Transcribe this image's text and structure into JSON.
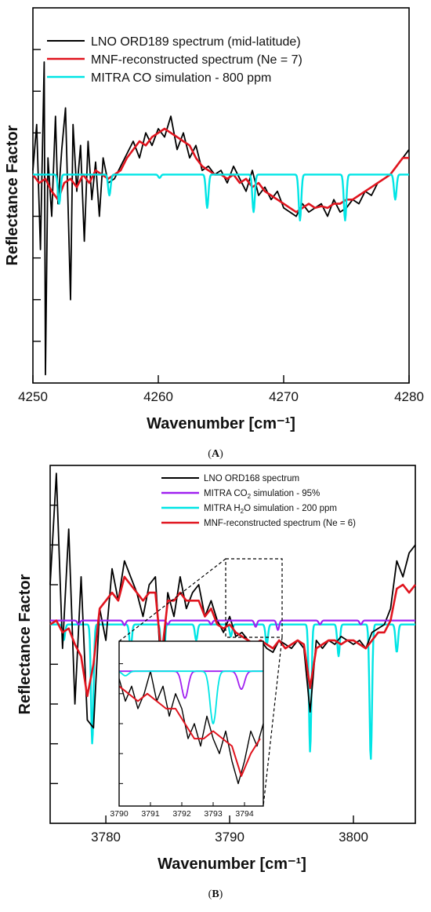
{
  "chart_data": [
    {
      "type": "line",
      "panel_label": "(A)",
      "panel_label_parts": [
        "(",
        "A",
        ")"
      ],
      "xlabel": "Wavenumber [cm⁻¹]",
      "ylabel": "Reflectance Factor",
      "xlim": [
        4250,
        4280
      ],
      "x_ticks": [
        4250,
        4260,
        4270,
        4280
      ],
      "ylim": [
        -2.5,
        2.0
      ],
      "y_ticks_unlabeled": [
        -2.0,
        -1.5,
        -1.0,
        -0.5,
        0.0,
        0.5,
        1.0,
        1.5
      ],
      "grid": false,
      "legend_position": "top",
      "series": [
        {
          "name": "LNO ORD189 spectrum (mid-latitude)",
          "color": "#000000",
          "x": [
            4250.0,
            4250.3,
            4250.6,
            4250.9,
            4251.0,
            4251.2,
            4251.5,
            4251.8,
            4252.0,
            4252.3,
            4252.6,
            4253.0,
            4253.2,
            4253.5,
            4253.8,
            4254.1,
            4254.4,
            4254.7,
            4255.0,
            4255.3,
            4255.6,
            4256.0,
            4256.5,
            4257,
            4257.5,
            4258,
            4258.5,
            4259,
            4259.5,
            4260,
            4260.5,
            4261,
            4261.5,
            4262,
            4262.5,
            4263,
            4263.5,
            4264,
            4264.5,
            4265,
            4265.5,
            4266,
            4266.5,
            4267,
            4267.5,
            4268,
            4268.5,
            4269,
            4269.5,
            4270,
            4270.5,
            4271,
            4271.5,
            4272,
            4272.5,
            4273,
            4273.5,
            4274,
            4274.5,
            4275,
            4275.5,
            4276,
            4276.5,
            4277,
            4277.5,
            4278,
            4278.5,
            4279,
            4279.5,
            4280
          ],
          "y": [
            0.05,
            0.6,
            -0.9,
            1.35,
            -2.4,
            0.2,
            -0.5,
            0.7,
            -0.35,
            0.3,
            0.8,
            -1.5,
            0.6,
            -0.2,
            0.35,
            -0.8,
            0.4,
            -0.3,
            0.15,
            -0.5,
            0.2,
            -0.1,
            -0.05,
            0.1,
            0.25,
            0.4,
            0.2,
            0.5,
            0.35,
            0.55,
            0.45,
            0.7,
            0.3,
            0.5,
            0.2,
            0.35,
            0.05,
            0.1,
            0.0,
            0.05,
            -0.1,
            0.1,
            -0.05,
            -0.2,
            0.05,
            -0.25,
            -0.15,
            -0.3,
            -0.2,
            -0.4,
            -0.45,
            -0.5,
            -0.35,
            -0.45,
            -0.4,
            -0.35,
            -0.5,
            -0.3,
            -0.45,
            -0.4,
            -0.3,
            -0.35,
            -0.2,
            -0.25,
            -0.1,
            -0.05,
            0.0,
            0.1,
            0.2,
            0.3
          ]
        },
        {
          "name": "MNF-reconstructed spectrum (Ne = 7)",
          "color": "#e0141e",
          "x": [
            4250.0,
            4250.5,
            4251.0,
            4251.5,
            4252.0,
            4252.5,
            4253.0,
            4253.5,
            4254.0,
            4254.5,
            4255.0,
            4255.5,
            4256.0,
            4256.5,
            4257,
            4257.5,
            4258,
            4258.5,
            4259,
            4259.5,
            4260,
            4260.5,
            4261,
            4261.5,
            4262,
            4262.5,
            4263,
            4263.5,
            4264,
            4264.5,
            4265,
            4265.5,
            4266,
            4266.5,
            4267,
            4267.5,
            4268,
            4268.5,
            4269,
            4269.5,
            4270,
            4270.5,
            4271,
            4271.5,
            4272,
            4272.5,
            4273,
            4273.5,
            4274,
            4274.5,
            4275,
            4275.5,
            4276,
            4276.5,
            4277,
            4277.5,
            4278,
            4278.5,
            4279,
            4279.5,
            4280
          ],
          "y": [
            0.0,
            -0.1,
            -0.05,
            -0.2,
            -0.3,
            -0.1,
            -0.05,
            -0.15,
            0.0,
            -0.1,
            0.05,
            0.0,
            -0.05,
            0.0,
            0.05,
            0.2,
            0.3,
            0.4,
            0.35,
            0.45,
            0.5,
            0.55,
            0.5,
            0.45,
            0.4,
            0.35,
            0.2,
            0.1,
            0.05,
            0.0,
            0.0,
            -0.05,
            0.0,
            -0.1,
            -0.05,
            -0.15,
            -0.1,
            -0.2,
            -0.25,
            -0.3,
            -0.35,
            -0.4,
            -0.45,
            -0.4,
            -0.35,
            -0.4,
            -0.38,
            -0.4,
            -0.35,
            -0.35,
            -0.3,
            -0.3,
            -0.25,
            -0.2,
            -0.15,
            -0.1,
            -0.05,
            0.0,
            0.1,
            0.2,
            0.2
          ]
        },
        {
          "name": "MITRA CO simulation - 800 ppm",
          "color": "#00e5e5",
          "baseline": 0.0,
          "lines": [
            {
              "center": 4252.1,
              "depth": 0.35
            },
            {
              "center": 4256.1,
              "depth": 0.25
            },
            {
              "center": 4260.1,
              "depth": 0.04
            },
            {
              "center": 4263.9,
              "depth": 0.4
            },
            {
              "center": 4267.6,
              "depth": 0.45
            },
            {
              "center": 4271.3,
              "depth": 0.55
            },
            {
              "center": 4274.9,
              "depth": 0.55
            },
            {
              "center": 4278.9,
              "depth": 0.3
            }
          ]
        }
      ]
    },
    {
      "type": "line",
      "panel_label": "(B)",
      "panel_label_parts": [
        "(",
        "B",
        ")"
      ],
      "xlabel": "Wavenumber [cm⁻¹]",
      "ylabel": "Reflectance Factor",
      "xlim": [
        3775.5,
        3805
      ],
      "x_ticks": [
        3780,
        3790,
        3800
      ],
      "ylim": [
        -2.5,
        2.0
      ],
      "y_ticks_unlabeled": [
        -2.0,
        -1.5,
        -1.0,
        -0.5,
        0.0,
        0.5,
        1.0,
        1.5
      ],
      "grid": false,
      "legend_position": "top",
      "series": [
        {
          "name": "LNO ORD168 spectrum",
          "color": "#000000",
          "x": [
            3775.5,
            3776,
            3776.5,
            3777,
            3777.5,
            3778,
            3778.5,
            3779,
            3779.5,
            3780,
            3780.5,
            3781,
            3781.5,
            3782,
            3782.5,
            3783,
            3783.5,
            3784,
            3784.5,
            3785,
            3785.5,
            3786,
            3786.5,
            3787,
            3787.5,
            3788,
            3788.5,
            3789,
            3789.5,
            3790,
            3790.5,
            3791,
            3791.5,
            3792,
            3792.5,
            3793,
            3793.5,
            3794,
            3794.5,
            3795,
            3795.5,
            3796,
            3796.5,
            3797,
            3797.5,
            3798,
            3798.5,
            3799,
            3799.5,
            3800,
            3800.5,
            3801,
            3801.5,
            3802,
            3802.5,
            3803,
            3803.5,
            3804,
            3804.5,
            3805
          ],
          "y": [
            0.5,
            1.9,
            -0.3,
            1.2,
            -1.0,
            0.6,
            -1.2,
            -1.3,
            0.2,
            -0.2,
            0.7,
            0.3,
            0.8,
            0.6,
            0.4,
            0.1,
            0.5,
            0.6,
            -0.7,
            0.4,
            0.1,
            0.6,
            0.2,
            0.4,
            0.5,
            0.1,
            0.3,
            0.05,
            -0.1,
            0.1,
            -0.15,
            -0.1,
            -0.2,
            -0.25,
            -0.2,
            -0.3,
            -0.35,
            -0.2,
            -0.25,
            -0.3,
            -0.2,
            -0.3,
            -1.1,
            -0.2,
            -0.3,
            -0.2,
            -0.25,
            -0.15,
            -0.2,
            -0.25,
            -0.2,
            -0.3,
            -0.1,
            -0.05,
            0.0,
            0.2,
            0.8,
            0.6,
            0.9,
            1.0
          ]
        },
        {
          "name": "MITRA CO₂ simulation - 95%",
          "name_parts": [
            "MITRA CO",
            "2",
            " simulation - 95%"
          ],
          "color": "#a020f0",
          "baseline": 0.05,
          "lines": [
            {
              "center": 3777.8,
              "depth": 0.05
            },
            {
              "center": 3781.5,
              "depth": 0.06
            },
            {
              "center": 3785.0,
              "depth": 0.05
            },
            {
              "center": 3788.5,
              "depth": 0.05
            },
            {
              "center": 3792.1,
              "depth": 0.08
            },
            {
              "center": 3793.9,
              "depth": 0.12
            },
            {
              "center": 3797.3,
              "depth": 0.05
            },
            {
              "center": 3800.6,
              "depth": 0.05
            }
          ]
        },
        {
          "name": "MITRA H₂O simulation - 200 ppm",
          "name_parts": [
            "MITRA H",
            "2",
            "O simulation - 200 ppm"
          ],
          "color": "#00e5e5",
          "baseline": 0.0,
          "lines": [
            {
              "center": 3776.6,
              "depth": 0.2
            },
            {
              "center": 3778.9,
              "depth": 1.5
            },
            {
              "center": 3782.0,
              "depth": 0.3
            },
            {
              "center": 3784.6,
              "depth": 1.3
            },
            {
              "center": 3787.3,
              "depth": 0.2
            },
            {
              "center": 3790.1,
              "depth": 0.15
            },
            {
              "center": 3793.0,
              "depth": 0.25
            },
            {
              "center": 3796.5,
              "depth": 1.6
            },
            {
              "center": 3798.8,
              "depth": 0.4
            },
            {
              "center": 3801.4,
              "depth": 1.7
            },
            {
              "center": 3803.5,
              "depth": 0.35
            }
          ]
        },
        {
          "name": "MNF-reconstructed spectrum (Ne = 6)",
          "color": "#e0141e",
          "x": [
            3775.5,
            3776,
            3776.5,
            3777,
            3777.5,
            3778,
            3778.5,
            3779,
            3779.5,
            3780,
            3780.5,
            3781,
            3781.5,
            3782,
            3782.5,
            3783,
            3783.5,
            3784,
            3784.5,
            3785,
            3785.5,
            3786,
            3786.5,
            3787,
            3787.5,
            3788,
            3788.5,
            3789,
            3789.5,
            3790,
            3790.5,
            3791,
            3791.5,
            3792,
            3792.5,
            3793,
            3793.5,
            3794,
            3794.5,
            3795,
            3795.5,
            3796,
            3796.5,
            3797,
            3797.5,
            3798,
            3798.5,
            3799,
            3799.5,
            3800,
            3800.5,
            3801,
            3801.5,
            3802,
            3802.5,
            3803,
            3803.5,
            3804,
            3804.5,
            3805
          ],
          "y": [
            0.0,
            0.05,
            -0.1,
            -0.05,
            -0.25,
            -0.4,
            -0.9,
            -0.5,
            0.2,
            0.3,
            0.4,
            0.3,
            0.6,
            0.5,
            0.4,
            0.3,
            0.4,
            0.4,
            -0.4,
            0.3,
            0.3,
            0.4,
            0.3,
            0.3,
            0.3,
            0.1,
            0.2,
            0.0,
            -0.05,
            0.0,
            -0.1,
            -0.15,
            -0.2,
            -0.25,
            -0.2,
            -0.25,
            -0.3,
            -0.2,
            -0.3,
            -0.25,
            -0.2,
            -0.25,
            -0.8,
            -0.3,
            -0.25,
            -0.2,
            -0.2,
            -0.25,
            -0.2,
            -0.2,
            -0.25,
            -0.3,
            -0.2,
            -0.1,
            -0.1,
            0.05,
            0.45,
            0.5,
            0.4,
            0.5
          ]
        }
      ],
      "inset": {
        "xlim": [
          3790,
          3794.6
        ],
        "x_ticks": [
          3790,
          3791,
          3792,
          3793,
          3794
        ],
        "source_box_x": [
          3790,
          3794.5
        ],
        "source_box_y": [
          -0.55,
          0.25
        ],
        "series": [
          {
            "name": "LNO ORD168 spectrum",
            "color": "#000000",
            "x": [
              3790.0,
              3790.2,
              3790.4,
              3790.6,
              3790.8,
              3791.0,
              3791.2,
              3791.4,
              3791.6,
              3791.8,
              3792.0,
              3792.2,
              3792.4,
              3792.6,
              3792.8,
              3793.0,
              3793.2,
              3793.4,
              3793.6,
              3793.8,
              3794.0,
              3794.2,
              3794.4,
              3794.6
            ],
            "y": [
              0.1,
              -0.05,
              0.05,
              -0.1,
              0.0,
              0.15,
              -0.05,
              0.05,
              -0.15,
              0.0,
              -0.1,
              -0.3,
              -0.2,
              -0.35,
              -0.15,
              -0.3,
              -0.4,
              -0.25,
              -0.45,
              -0.6,
              -0.45,
              -0.25,
              -0.35,
              -0.2
            ]
          },
          {
            "name": "MNF-reconstructed spectrum (Ne = 6)",
            "color": "#e0141e",
            "x": [
              3790.0,
              3790.3,
              3790.6,
              3790.9,
              3791.2,
              3791.5,
              3791.8,
              3792.1,
              3792.4,
              3792.7,
              3793.0,
              3793.3,
              3793.6,
              3793.9,
              3794.2,
              3794.5
            ],
            "y": [
              0.05,
              0.0,
              -0.05,
              0.0,
              -0.05,
              -0.1,
              -0.1,
              -0.2,
              -0.3,
              -0.3,
              -0.25,
              -0.3,
              -0.35,
              -0.55,
              -0.4,
              -0.3
            ]
          },
          {
            "name": "MITRA CO₂ simulation - 95%",
            "color": "#a020f0",
            "baseline": 0.15,
            "lines": [
              {
                "center": 3792.1,
                "depth": 0.18
              },
              {
                "center": 3793.9,
                "depth": 0.12
              }
            ]
          },
          {
            "name": "MITRA H₂O simulation - 200 ppm",
            "color": "#00e5e5",
            "baseline": 0.15,
            "lines": [
              {
                "center": 3790.2,
                "depth": 0.03
              },
              {
                "center": 3793.0,
                "depth": 0.35
              }
            ]
          }
        ]
      }
    }
  ]
}
